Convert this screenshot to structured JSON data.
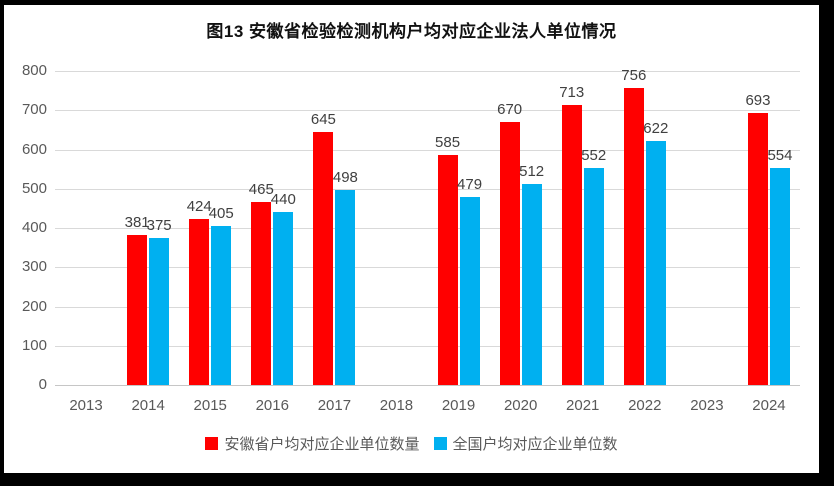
{
  "chart_data": {
    "type": "bar",
    "title": "图13  安徽省检验检测机构户均对应企业法人单位情况",
    "categories": [
      "2013",
      "2014",
      "2015",
      "2016",
      "2017",
      "2018",
      "2019",
      "2020",
      "2021",
      "2022",
      "2023",
      "2024"
    ],
    "series": [
      {
        "name": "安徽省户均对应企业单位数量",
        "color": "#FF0000",
        "values": [
          null,
          381,
          424,
          465,
          645,
          null,
          585,
          670,
          713,
          756,
          null,
          693
        ]
      },
      {
        "name": "全国户均对应企业单位数",
        "color": "#00B0F0",
        "values": [
          null,
          375,
          405,
          440,
          498,
          null,
          479,
          512,
          552,
          622,
          null,
          554
        ]
      }
    ],
    "ylim": [
      0,
      800
    ],
    "yticks": [
      0,
      100,
      200,
      300,
      400,
      500,
      600,
      700,
      800
    ],
    "xlabel": "",
    "ylabel": "",
    "grid": true,
    "data_labels": true,
    "legend_position": "bottom"
  },
  "colors": {
    "frame": "#000000",
    "canvas": "#ffffff",
    "gridline": "#d9d9d9",
    "tick_text": "#595959",
    "data_label_text": "#404040",
    "title_text": "#111111"
  }
}
